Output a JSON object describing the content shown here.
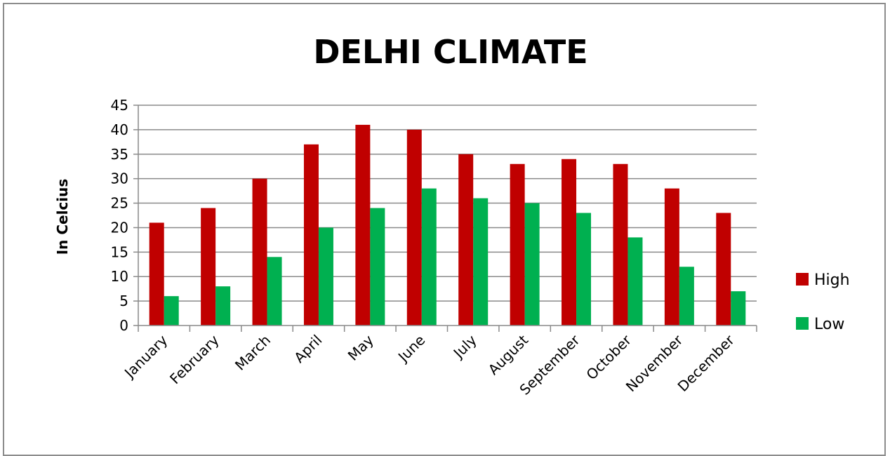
{
  "chart_data": {
    "type": "bar",
    "title": "DELHI CLIMATE",
    "ylabel": "In Celcius",
    "xlabel": "",
    "categories": [
      "January",
      "February",
      "March",
      "April",
      "May",
      "June",
      "July",
      "August",
      "September",
      "October",
      "November",
      "December"
    ],
    "series": [
      {
        "name": "High",
        "color": "#c00000",
        "values": [
          21,
          24,
          30,
          37,
          41,
          40,
          35,
          33,
          34,
          33,
          28,
          23
        ]
      },
      {
        "name": "Low",
        "color": "#00b050",
        "values": [
          6,
          8,
          14,
          20,
          24,
          28,
          26,
          25,
          23,
          18,
          12,
          7
        ]
      }
    ],
    "ylim": [
      0,
      45
    ],
    "yticks": [
      0,
      5,
      10,
      15,
      20,
      25,
      30,
      35,
      40,
      45
    ],
    "grid": true,
    "legend_position": "right"
  }
}
